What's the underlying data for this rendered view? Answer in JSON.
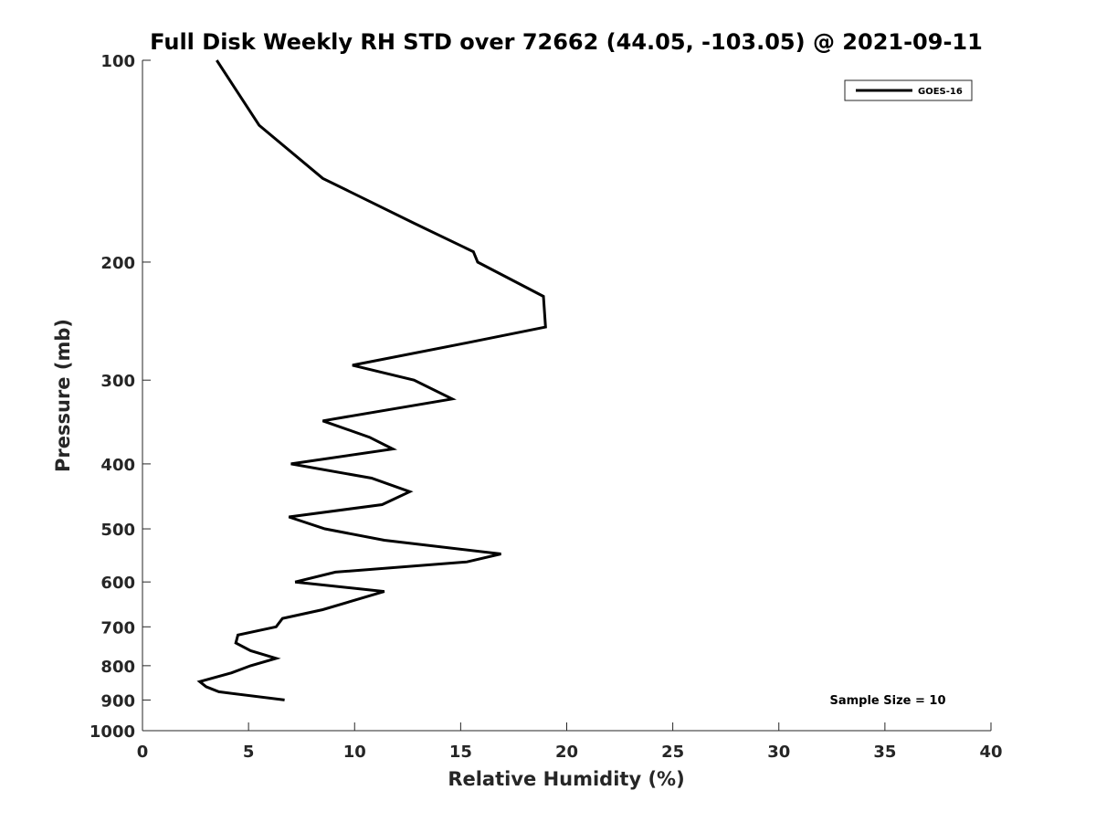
{
  "chart_data": {
    "type": "line",
    "title": "Full Disk Weekly RH STD over 72662 (44.05, -103.05) @ 2021-09-11",
    "xlabel": "Relative Humidity (%)",
    "ylabel": "Pressure (mb)",
    "xlim": [
      0,
      40
    ],
    "ylim": [
      100,
      1000
    ],
    "y_scale": "log",
    "y_reversed": true,
    "x_ticks": [
      0,
      5,
      10,
      15,
      20,
      25,
      30,
      35,
      40
    ],
    "x_tick_labels": [
      "0",
      "5",
      "10",
      "15",
      "20",
      "25",
      "30",
      "35",
      "40"
    ],
    "y_ticks": [
      100,
      200,
      300,
      400,
      500,
      600,
      700,
      800,
      900,
      1000
    ],
    "y_tick_labels": [
      "100",
      "200",
      "300",
      "400",
      "500",
      "600",
      "700",
      "800",
      "900",
      "1000"
    ],
    "grid": false,
    "legend_position": "top-right",
    "series": [
      {
        "name": "GOES-16",
        "color": "#000000",
        "points": [
          {
            "x": 3.5,
            "y": 100
          },
          {
            "x": 5.5,
            "y": 125
          },
          {
            "x": 8.5,
            "y": 150
          },
          {
            "x": 12.8,
            "y": 175
          },
          {
            "x": 15.6,
            "y": 193
          },
          {
            "x": 15.8,
            "y": 200
          },
          {
            "x": 18.9,
            "y": 225
          },
          {
            "x": 19.0,
            "y": 250
          },
          {
            "x": 15.0,
            "y": 265
          },
          {
            "x": 9.9,
            "y": 285
          },
          {
            "x": 12.8,
            "y": 300
          },
          {
            "x": 14.6,
            "y": 320
          },
          {
            "x": 8.5,
            "y": 345
          },
          {
            "x": 10.7,
            "y": 365
          },
          {
            "x": 11.8,
            "y": 380
          },
          {
            "x": 7.0,
            "y": 400
          },
          {
            "x": 10.8,
            "y": 420
          },
          {
            "x": 12.6,
            "y": 440
          },
          {
            "x": 11.3,
            "y": 460
          },
          {
            "x": 6.9,
            "y": 480
          },
          {
            "x": 8.6,
            "y": 500
          },
          {
            "x": 11.4,
            "y": 520
          },
          {
            "x": 16.9,
            "y": 545
          },
          {
            "x": 15.3,
            "y": 560
          },
          {
            "x": 9.1,
            "y": 580
          },
          {
            "x": 7.2,
            "y": 600
          },
          {
            "x": 11.4,
            "y": 620
          },
          {
            "x": 8.5,
            "y": 660
          },
          {
            "x": 6.6,
            "y": 680
          },
          {
            "x": 6.3,
            "y": 700
          },
          {
            "x": 4.5,
            "y": 720
          },
          {
            "x": 4.4,
            "y": 740
          },
          {
            "x": 5.1,
            "y": 760
          },
          {
            "x": 6.3,
            "y": 780
          },
          {
            "x": 5.1,
            "y": 800
          },
          {
            "x": 4.2,
            "y": 820
          },
          {
            "x": 2.7,
            "y": 845
          },
          {
            "x": 3.0,
            "y": 860
          },
          {
            "x": 3.6,
            "y": 875
          },
          {
            "x": 6.7,
            "y": 900
          }
        ]
      }
    ],
    "annotations": [
      "Sample Size = 10"
    ]
  }
}
